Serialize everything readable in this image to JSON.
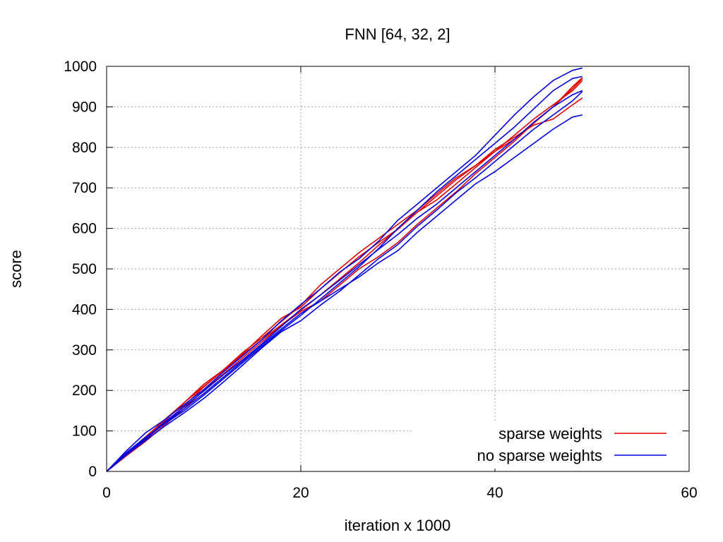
{
  "chart_data": {
    "type": "line",
    "title": "FNN [64, 32, 2]",
    "xlabel": "iteration x 1000",
    "ylabel": "score",
    "xlim": [
      0,
      60
    ],
    "ylim": [
      0,
      1000
    ],
    "xticks": [
      0,
      20,
      40,
      60
    ],
    "yticks": [
      0,
      100,
      200,
      300,
      400,
      500,
      600,
      700,
      800,
      900,
      1000
    ],
    "grid": true,
    "legend_position": "bottom-right",
    "legend": [
      {
        "label": "sparse weights",
        "color": "#e00000"
      },
      {
        "label": "no sparse weights",
        "color": "#0000e0"
      }
    ],
    "series": [
      {
        "group": 0,
        "color": "#e00000",
        "x": [
          0,
          2,
          4,
          6,
          8,
          10,
          12,
          14,
          16,
          18,
          20,
          22,
          24,
          26,
          28,
          30,
          32,
          34,
          36,
          38,
          40,
          42,
          44,
          46,
          48,
          49
        ],
        "y": [
          0,
          42,
          80,
          125,
          170,
          215,
          250,
          293,
          330,
          370,
          410,
          460,
          500,
          540,
          575,
          610,
          645,
          685,
          725,
          755,
          790,
          820,
          860,
          900,
          950,
          972
        ]
      },
      {
        "group": 0,
        "color": "#e00000",
        "x": [
          0,
          2,
          4,
          6,
          8,
          10,
          12,
          14,
          16,
          18,
          20,
          22,
          24,
          26,
          28,
          30,
          32,
          34,
          36,
          38,
          40,
          42,
          44,
          46,
          48,
          49
        ],
        "y": [
          0,
          40,
          78,
          120,
          162,
          208,
          250,
          288,
          325,
          362,
          398,
          435,
          475,
          515,
          558,
          598,
          640,
          680,
          720,
          755,
          795,
          825,
          855,
          870,
          905,
          922
        ]
      },
      {
        "group": 0,
        "color": "#e00000",
        "x": [
          0,
          2,
          4,
          6,
          8,
          10,
          12,
          14,
          16,
          18,
          20,
          22,
          24,
          26,
          28,
          30,
          32,
          34,
          36,
          38,
          40,
          42,
          44,
          46,
          48,
          49
        ],
        "y": [
          0,
          45,
          85,
          128,
          170,
          210,
          248,
          290,
          335,
          378,
          405,
          450,
          490,
          530,
          565,
          598,
          640,
          670,
          710,
          750,
          790,
          830,
          870,
          905,
          940,
          965
        ]
      },
      {
        "group": 0,
        "color": "#e00000",
        "x": [
          0,
          2,
          4,
          6,
          8,
          10,
          12,
          14,
          16,
          18,
          20,
          22,
          24,
          26,
          28,
          30,
          32,
          34,
          36,
          38,
          40,
          42,
          44,
          46,
          48,
          49
        ],
        "y": [
          0,
          38,
          74,
          115,
          155,
          200,
          240,
          280,
          320,
          360,
          395,
          420,
          460,
          500,
          530,
          565,
          610,
          650,
          690,
          735,
          775,
          815,
          860,
          900,
          945,
          970
        ]
      },
      {
        "group": 1,
        "color": "#0000e0",
        "x": [
          0,
          2,
          4,
          6,
          8,
          10,
          12,
          14,
          16,
          18,
          20,
          22,
          24,
          26,
          28,
          30,
          32,
          34,
          36,
          38,
          40,
          42,
          44,
          46,
          48,
          49
        ],
        "y": [
          0,
          50,
          95,
          128,
          165,
          202,
          245,
          285,
          325,
          372,
          412,
          450,
          492,
          525,
          568,
          620,
          660,
          700,
          740,
          780,
          830,
          880,
          925,
          965,
          990,
          996
        ]
      },
      {
        "group": 1,
        "color": "#0000e0",
        "x": [
          0,
          2,
          4,
          6,
          8,
          10,
          12,
          14,
          16,
          18,
          20,
          22,
          24,
          26,
          28,
          30,
          32,
          34,
          36,
          38,
          40,
          42,
          44,
          46,
          48,
          49
        ],
        "y": [
          0,
          42,
          80,
          120,
          155,
          192,
          232,
          272,
          312,
          352,
          390,
          420,
          450,
          480,
          515,
          545,
          590,
          630,
          670,
          710,
          740,
          775,
          810,
          845,
          875,
          880
        ]
      },
      {
        "group": 1,
        "color": "#0000e0",
        "x": [
          0,
          2,
          4,
          6,
          8,
          10,
          12,
          14,
          16,
          18,
          20,
          22,
          24,
          26,
          28,
          30,
          32,
          34,
          36,
          38,
          40,
          42,
          44,
          46,
          48,
          49
        ],
        "y": [
          0,
          44,
          82,
          122,
          160,
          198,
          238,
          275,
          315,
          358,
          400,
          435,
          472,
          510,
          548,
          585,
          625,
          660,
          700,
          740,
          780,
          820,
          862,
          900,
          930,
          940
        ]
      },
      {
        "group": 1,
        "color": "#0000e0",
        "x": [
          0,
          2,
          4,
          6,
          8,
          10,
          12,
          14,
          16,
          18,
          20,
          22,
          24,
          26,
          28,
          30,
          32,
          34,
          36,
          38,
          40,
          42,
          44,
          46,
          48,
          49
        ],
        "y": [
          0,
          46,
          84,
          118,
          150,
          188,
          228,
          268,
          308,
          348,
          385,
          425,
          465,
          505,
          550,
          600,
          645,
          690,
          730,
          770,
          810,
          850,
          895,
          940,
          970,
          975
        ]
      },
      {
        "group": 1,
        "color": "#0000e0",
        "x": [
          0,
          2,
          4,
          6,
          8,
          10,
          12,
          14,
          16,
          18,
          20,
          22,
          24,
          26,
          28,
          30,
          32,
          34,
          36,
          38,
          40,
          42,
          44,
          46,
          48,
          49
        ],
        "y": [
          0,
          40,
          76,
          112,
          145,
          180,
          220,
          262,
          305,
          345,
          372,
          410,
          445,
          485,
          525,
          560,
          605,
          645,
          688,
          725,
          765,
          805,
          845,
          880,
          915,
          938
        ]
      }
    ]
  }
}
